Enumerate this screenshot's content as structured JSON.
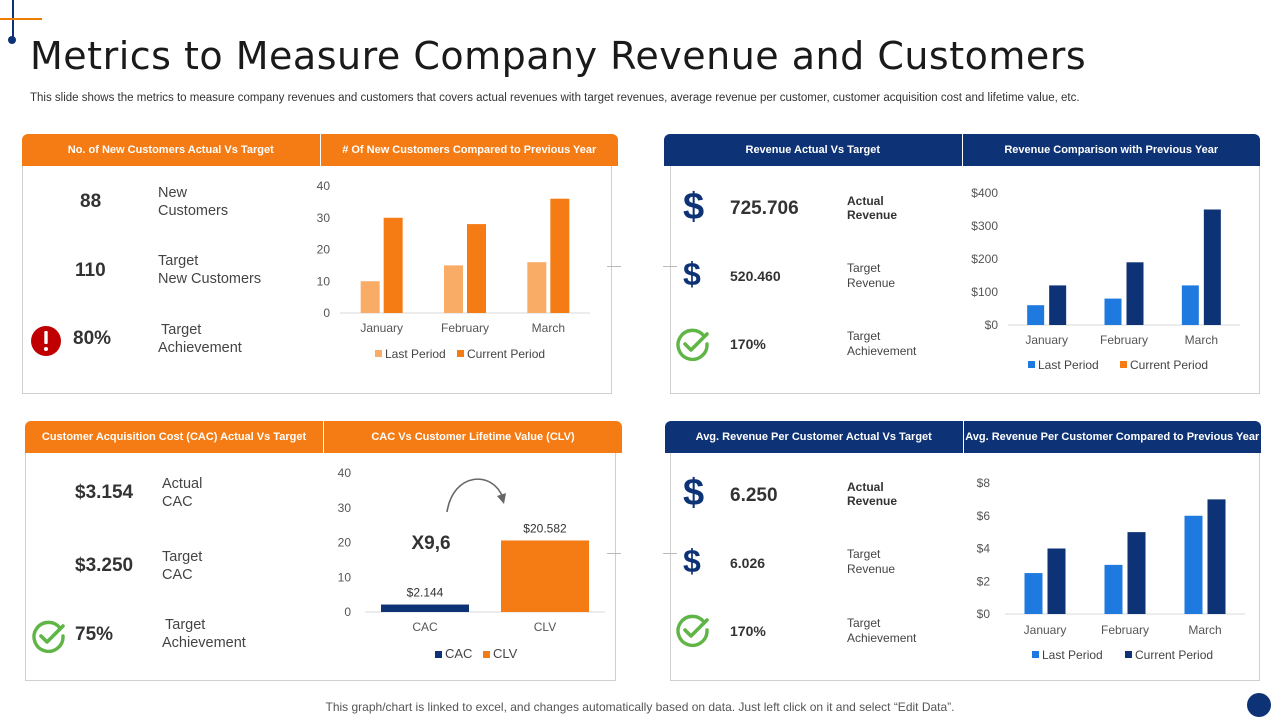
{
  "title": "Metrics to Measure Company Revenue and Customers",
  "subtitle": "This slide shows the metrics to measure company revenues and customers that covers actual revenues with target revenues, average revenue per customer, customer acquisition cost and lifetime value, etc.",
  "footer": "This graph/chart is linked to excel,  and changes automatically based on data. Just left click on it and select “Edit Data”.",
  "colors": {
    "orange": "#f57c14",
    "light_orange": "#f9ac66",
    "navy": "#0d3275",
    "blue": "#1f7ae0",
    "check_green": "#5fb546",
    "alert_red": "#c00000"
  },
  "panel1": {
    "header_left": "No. of New Customers Actual Vs Target",
    "header_right": "# Of New Customers Compared to Previous Year",
    "metrics": [
      {
        "value": "88",
        "label_line1": "New",
        "label_line2": "Customers"
      },
      {
        "value": "110",
        "label_line1": "Target",
        "label_line2": "New Customers"
      },
      {
        "value": "80%",
        "label_line1": "Target",
        "label_line2": "Achievement",
        "icon": "alert-icon"
      }
    ]
  },
  "panel2": {
    "header_left": "Revenue Actual Vs Target",
    "header_right": "Revenue Comparison with Previous Year",
    "metrics": [
      {
        "value": "725.706",
        "label_line1": "Actual",
        "label_line2": "Revenue",
        "icon": "dollar-icon"
      },
      {
        "value": "520.460",
        "label_line1": "Target",
        "label_line2": "Revenue",
        "icon": "dollar-icon"
      },
      {
        "value": "170%",
        "label_line1": "Target",
        "label_line2": "Achievement",
        "icon": "check-circle-icon"
      }
    ],
    "dollar_symbol": "$"
  },
  "panel3": {
    "header_left": "Customer  Acquisition Cost (CAC) Actual Vs Target",
    "header_right": "CAC Vs Customer Lifetime Value (CLV)",
    "metrics": [
      {
        "value": "$3.154",
        "label_line1": "Actual",
        "label_line2": "CAC"
      },
      {
        "value": "$3.250",
        "label_line1": "Target",
        "label_line2": "CAC"
      },
      {
        "value": "75%",
        "label_line1": "Target",
        "label_line2": "Achievement",
        "icon": "check-circle-icon"
      }
    ]
  },
  "panel4": {
    "header_left": "Avg. Revenue Per Customer Actual Vs Target",
    "header_right": "Avg. Revenue Per Customer Compared to Previous Year",
    "metrics": [
      {
        "value": "6.250",
        "label_line1": "Actual",
        "label_line2": "Revenue",
        "icon": "dollar-icon"
      },
      {
        "value": "6.026",
        "label_line1": "Target",
        "label_line2": "Revenue",
        "icon": "dollar-icon"
      },
      {
        "value": "170%",
        "label_line1": "Target",
        "label_line2": "Achievement",
        "icon": "check-circle-icon"
      }
    ],
    "dollar_symbol": "$"
  },
  "chart_data": [
    {
      "id": "new-customers",
      "type": "bar",
      "title": "# Of New Customers Compared to Previous Year",
      "categories": [
        "January",
        "February",
        "March"
      ],
      "series": [
        {
          "name": "Last Period",
          "values": [
            10,
            15,
            16
          ],
          "color": "#f9ac66"
        },
        {
          "name": "Current Period",
          "values": [
            30,
            28,
            36
          ],
          "color": "#f57c14"
        }
      ],
      "yticks": [
        "0",
        "10",
        "20",
        "30",
        "40"
      ],
      "ylim": [
        0,
        40
      ]
    },
    {
      "id": "revenue",
      "type": "bar",
      "title": "Revenue Comparison with Previous Year",
      "categories": [
        "January",
        "February",
        "March"
      ],
      "series": [
        {
          "name": "Last Period",
          "values": [
            60,
            80,
            120
          ],
          "color": "#1f7ae0"
        },
        {
          "name": "Current Period",
          "values": [
            120,
            190,
            350
          ],
          "color": "#0d3275"
        }
      ],
      "legend_colors": [
        "#1f7ae0",
        "#f57c14"
      ],
      "yticks": [
        "$0",
        "$100",
        "$200",
        "$300",
        "$400"
      ],
      "ylim": [
        0,
        400
      ]
    },
    {
      "id": "cac-clv",
      "type": "bar",
      "title": "CAC Vs Customer Lifetime Value (CLV)",
      "categories": [
        "CAC",
        "CLV"
      ],
      "series": [
        {
          "name": "CAC",
          "values": [
            2.144,
            null
          ],
          "color": "#0d3275"
        },
        {
          "name": "CLV",
          "values": [
            null,
            20.582
          ],
          "color": "#f57c14"
        }
      ],
      "data_labels": [
        "$2.144",
        "$20.582"
      ],
      "annotation": "X9,6",
      "yticks": [
        "0",
        "10",
        "20",
        "30",
        "40"
      ],
      "ylim": [
        0,
        40
      ]
    },
    {
      "id": "avg-revenue",
      "type": "bar",
      "title": "Avg. Revenue Per Customer Compared to Previous Year",
      "categories": [
        "January",
        "February",
        "March"
      ],
      "series": [
        {
          "name": "Last Period",
          "values": [
            2.5,
            3,
            6
          ],
          "color": "#1f7ae0"
        },
        {
          "name": "Current Period",
          "values": [
            4,
            5,
            7
          ],
          "color": "#0d3275"
        }
      ],
      "yticks": [
        "$0",
        "$2",
        "$4",
        "$6",
        "$8"
      ],
      "ylim": [
        0,
        8
      ]
    }
  ]
}
